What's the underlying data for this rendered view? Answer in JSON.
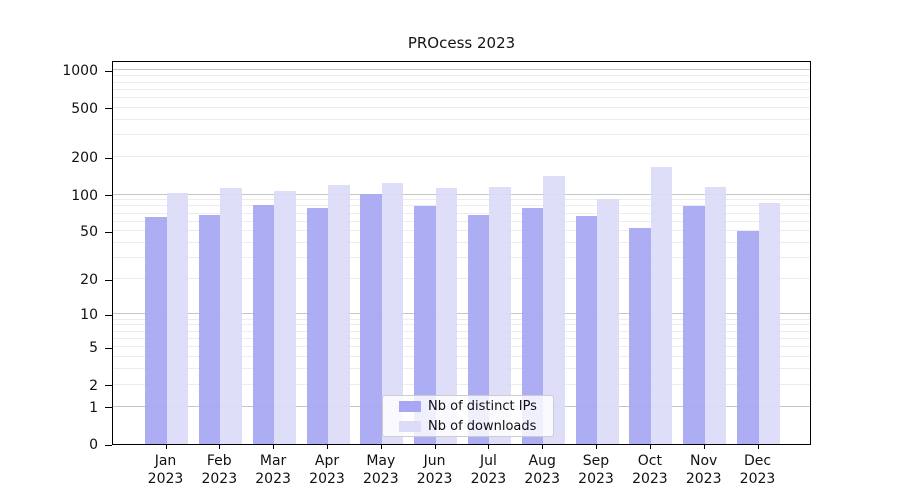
{
  "chart_data": {
    "type": "bar",
    "title": "PROcess 2023",
    "x_year": "2023",
    "categories": [
      "Jan",
      "Feb",
      "Mar",
      "Apr",
      "May",
      "Jun",
      "Jul",
      "Aug",
      "Sep",
      "Oct",
      "Nov",
      "Dec"
    ],
    "series": [
      {
        "name": "Nb of distinct IPs",
        "color": "#a7a7f3",
        "values": [
          66,
          68,
          82,
          77,
          101,
          80,
          68,
          77,
          67,
          53,
          80,
          50
        ]
      },
      {
        "name": "Nb of downloads",
        "color": "#dcdcf9",
        "values": [
          103,
          112,
          107,
          119,
          124,
          113,
          116,
          141,
          92,
          168,
          114,
          86
        ]
      }
    ],
    "yscale": "log10(value+1)",
    "y_ticks": [
      0,
      1,
      2,
      5,
      10,
      20,
      50,
      100,
      200,
      500,
      1000
    ],
    "ylim": [
      0,
      1200
    ],
    "grid": {
      "major_ticks": [
        1,
        10,
        100,
        1000
      ],
      "major_color": "#c6c6c6",
      "minor_color": "#ededed"
    },
    "legend_position": "lower-center",
    "axis_color": "#000000"
  }
}
